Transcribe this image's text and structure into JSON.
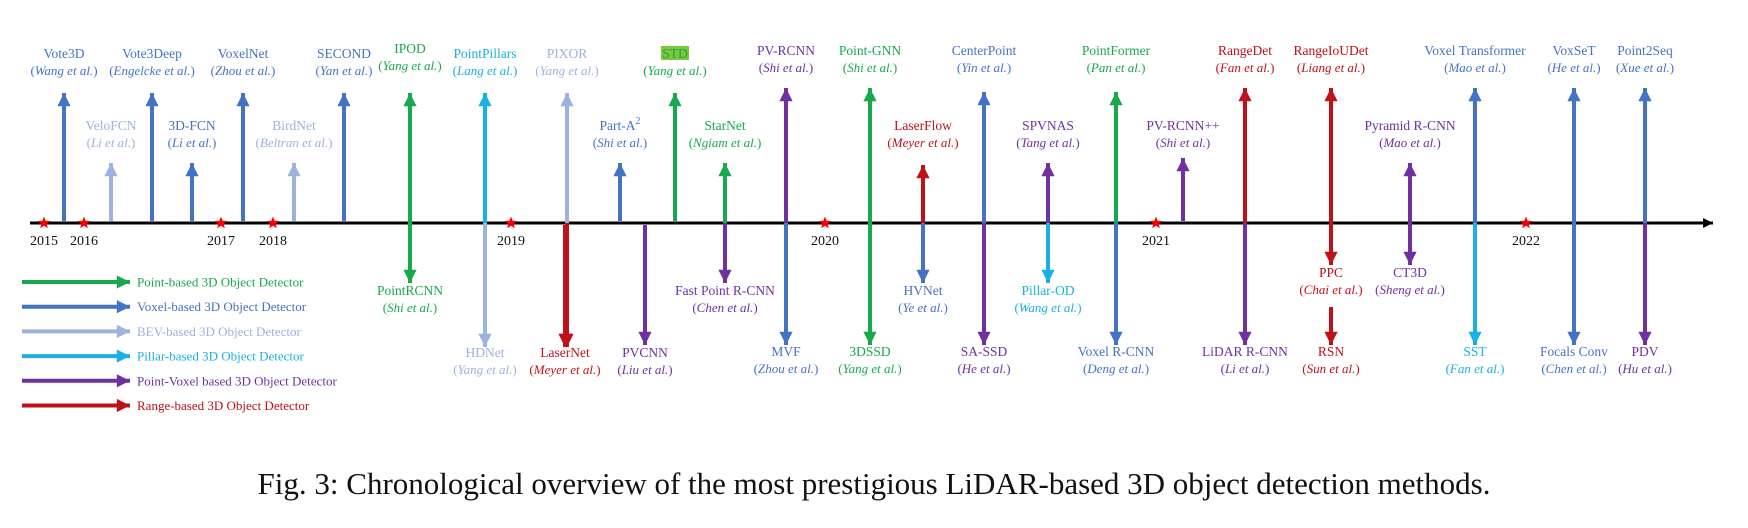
{
  "colors": {
    "point": "#18a84e",
    "voxel": "#4472c4",
    "bev": "#9db2de",
    "pillar": "#19b0e3",
    "pv": "#7030a0",
    "range": "#c0101a",
    "axis": "#000000",
    "star": "#ff0000",
    "highlight": "#7ec63a"
  },
  "legend": [
    {
      "label": "Point-based 3D Object Detector",
      "cat": "point"
    },
    {
      "label": "Voxel-based 3D Object Detector",
      "cat": "voxel"
    },
    {
      "label": "BEV-based 3D Object Detector",
      "cat": "bev"
    },
    {
      "label": "Pillar-based 3D Object Detector",
      "cat": "pillar"
    },
    {
      "label": "Point-Voxel based 3D Object Detector",
      "cat": "pv"
    },
    {
      "label": "Range-based 3D Object Detector",
      "cat": "range"
    }
  ],
  "years": [
    "2015",
    "2016",
    "2017",
    "2018",
    "2019",
    "2020",
    "2021",
    "2022"
  ],
  "methods": [
    {
      "name": "Vote3D",
      "authors": "Wang et al.",
      "cat": "voxel"
    },
    {
      "name": "VeloFCN",
      "authors": "Li et al.",
      "cat": "bev"
    },
    {
      "name": "Vote3Deep",
      "authors": "Engelcke et al.",
      "cat": "voxel"
    },
    {
      "name": "3D-FCN",
      "authors": "Li et al.",
      "cat": "voxel"
    },
    {
      "name": "VoxelNet",
      "authors": "Zhou et al.",
      "cat": "voxel"
    },
    {
      "name": "BirdNet",
      "authors": "Beltran et al.",
      "cat": "bev"
    },
    {
      "name": "SECOND",
      "authors": "Yan et al.",
      "cat": "voxel"
    },
    {
      "name": "PointRCNN",
      "authors": "Shi et al.",
      "cat": "point"
    },
    {
      "name": "IPOD",
      "authors": "Yang et al.",
      "cat": "point"
    },
    {
      "name": "PointPillars",
      "authors": "Lang et al.",
      "cat": "pillar"
    },
    {
      "name": "HDNet",
      "authors": "Yang et al.",
      "cat": "bev"
    },
    {
      "name": "PIXOR",
      "authors": "Yang et al.",
      "cat": "bev"
    },
    {
      "name": "LaserNet",
      "authors": "Meyer et al.",
      "cat": "range"
    },
    {
      "name": "Part-A",
      "authors": "Shi et al.",
      "cat": "voxel"
    },
    {
      "name": "PVCNN",
      "authors": "Liu et al.",
      "cat": "pv"
    },
    {
      "name": "STD",
      "authors": "Yang et al.",
      "cat": "point"
    },
    {
      "name": "StarNet",
      "authors": "Ngiam et al.",
      "cat": "point"
    },
    {
      "name": "Fast Point R-CNN",
      "authors": "Chen et al.",
      "cat": "pv"
    },
    {
      "name": "PV-RCNN",
      "authors": "Shi et al.",
      "cat": "pv"
    },
    {
      "name": "MVF",
      "authors": "Zhou et al.",
      "cat": "voxel"
    },
    {
      "name": "Point-GNN",
      "authors": "Shi et al.",
      "cat": "point"
    },
    {
      "name": "3DSSD",
      "authors": "Yang et al.",
      "cat": "point"
    },
    {
      "name": "LaserFlow",
      "authors": "Meyer et al.",
      "cat": "range"
    },
    {
      "name": "HVNet",
      "authors": "Ye et al.",
      "cat": "voxel"
    },
    {
      "name": "CenterPoint",
      "authors": "Yin et al.",
      "cat": "voxel"
    },
    {
      "name": "SA-SSD",
      "authors": "He et al.",
      "cat": "pv"
    },
    {
      "name": "SPVNAS",
      "authors": "Tang et al.",
      "cat": "pv"
    },
    {
      "name": "Pillar-OD",
      "authors": "Wang et al.",
      "cat": "pillar"
    },
    {
      "name": "PointFormer",
      "authors": "Pan et al.",
      "cat": "point"
    },
    {
      "name": "Voxel R-CNN",
      "authors": "Deng et al.",
      "cat": "voxel"
    },
    {
      "name": "PV-RCNN++",
      "authors": "Shi et al.",
      "cat": "pv"
    },
    {
      "name": "RangeDet",
      "authors": "Fan et al.",
      "cat": "range"
    },
    {
      "name": "LiDAR R-CNN",
      "authors": "Li et al.",
      "cat": "pv"
    },
    {
      "name": "RangeIoUDet",
      "authors": "Liang et al.",
      "cat": "range"
    },
    {
      "name": "PPC",
      "authors": "Chai et al.",
      "cat": "range"
    },
    {
      "name": "RSN",
      "authors": "Sun et al.",
      "cat": "range"
    },
    {
      "name": "Pyramid R-CNN",
      "authors": "Mao et al.",
      "cat": "pv"
    },
    {
      "name": "CT3D",
      "authors": "Sheng et al.",
      "cat": "pv"
    },
    {
      "name": "Voxel Transformer",
      "authors": "Mao et al.",
      "cat": "voxel"
    },
    {
      "name": "SST",
      "authors": "Fan et al.",
      "cat": "pillar"
    },
    {
      "name": "VoxSeT",
      "authors": "He et al.",
      "cat": "voxel"
    },
    {
      "name": "Focals Conv",
      "authors": "Chen et al.",
      "cat": "voxel"
    },
    {
      "name": "Point2Seq",
      "authors": "Xue et al.",
      "cat": "voxel"
    },
    {
      "name": "PDV",
      "authors": "Hu et al.",
      "cat": "pv"
    }
  ],
  "caption": "Fig. 3: Chronological overview of the most prestigious LiDAR-based 3D object detection methods."
}
